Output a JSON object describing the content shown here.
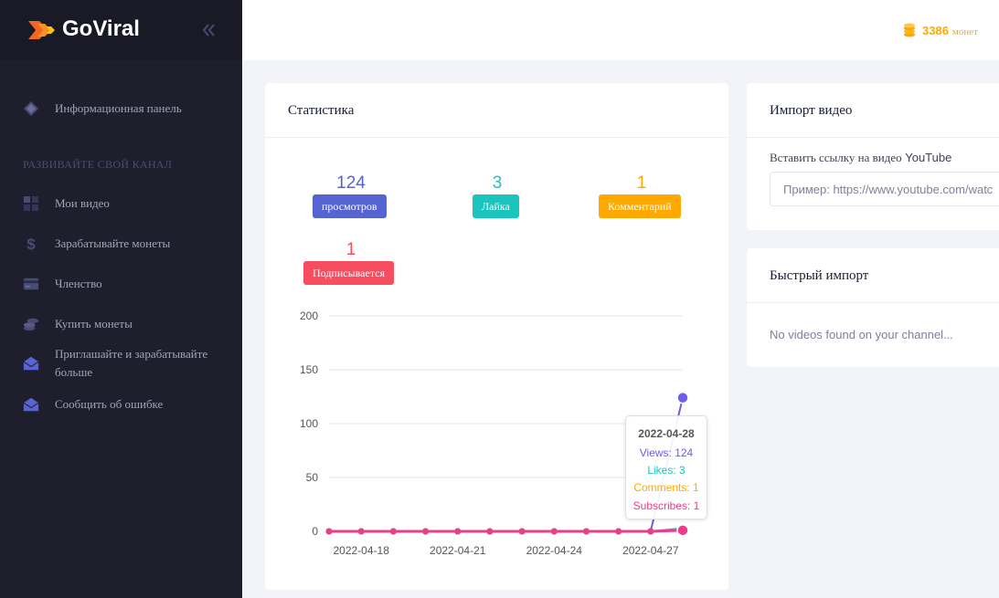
{
  "brand": {
    "name": "GoViral"
  },
  "sidebar": {
    "items": [
      {
        "label": "Информационная панель",
        "icon": "diamond-icon"
      },
      {
        "label": "Мои видео",
        "icon": "grid-icon"
      },
      {
        "label": "Зарабатывайте монеты",
        "icon": "dollar-icon"
      },
      {
        "label": "Членство",
        "icon": "credit-card-icon"
      },
      {
        "label": "Купить монеты",
        "icon": "coins-icon"
      },
      {
        "label": "Приглашайте и зарабатывайте больше",
        "icon": "envelope-open-icon"
      },
      {
        "label": "Сообщить об ошибке",
        "icon": "envelope-open-icon"
      }
    ],
    "section_title": "РАЗВИВАЙТЕ СВОЙ КАНАЛ"
  },
  "header": {
    "coins_amount": "3386",
    "coins_unit": "монет",
    "coin_color": "#ffa800"
  },
  "stats_card": {
    "title": "Статистика",
    "stats": [
      {
        "value": "124",
        "label": "просмотров",
        "color": "#5664d2"
      },
      {
        "value": "3",
        "label": "Лайка",
        "color": "#1bc5bd"
      },
      {
        "value": "1",
        "label": "Комментарий",
        "color": "#ffa800"
      },
      {
        "value": "1",
        "label": "Подписывается",
        "color": "#f64e60"
      }
    ]
  },
  "import_card": {
    "title": "Импорт видео",
    "label_ru": "Вставить ссылку на видео",
    "label_brand": "YouTube",
    "placeholder": "Пример: https://www.youtube.com/watch?v="
  },
  "quick_import_card": {
    "title": "Быстрый импорт",
    "empty_text": "No videos found on your channel..."
  },
  "chart_data": {
    "type": "line",
    "x": [
      "2022-04-17",
      "2022-04-18",
      "2022-04-19",
      "2022-04-20",
      "2022-04-21",
      "2022-04-22",
      "2022-04-23",
      "2022-04-24",
      "2022-04-25",
      "2022-04-26",
      "2022-04-27",
      "2022-04-28"
    ],
    "x_tick_labels": [
      "2022-04-18",
      "2022-04-21",
      "2022-04-24",
      "2022-04-27"
    ],
    "y_ticks": [
      0,
      50,
      100,
      150,
      200
    ],
    "ylim": [
      0,
      200
    ],
    "grid": true,
    "series": [
      {
        "name": "Views",
        "color": "#6c5ce7",
        "values": [
          0,
          0,
          0,
          0,
          0,
          0,
          0,
          0,
          0,
          0,
          0,
          124
        ]
      },
      {
        "name": "Likes",
        "color": "#1bc5bd",
        "values": [
          0,
          0,
          0,
          0,
          0,
          0,
          0,
          0,
          0,
          0,
          0,
          3
        ]
      },
      {
        "name": "Comments",
        "color": "#ffa800",
        "values": [
          0,
          0,
          0,
          0,
          0,
          0,
          0,
          0,
          0,
          0,
          0,
          1
        ]
      },
      {
        "name": "Subscribes",
        "color": "#e83e8c",
        "values": [
          0,
          0,
          0,
          0,
          0,
          0,
          0,
          0,
          0,
          0,
          0,
          1
        ]
      }
    ],
    "tooltip": {
      "date": "2022-04-28",
      "lines": [
        {
          "text": "Views: 124",
          "color": "#6c5ce7"
        },
        {
          "text": "Likes: 3",
          "color": "#1bc5bd"
        },
        {
          "text": "Comments: 1",
          "color": "#ffa800"
        },
        {
          "text": "Subscribes: 1",
          "color": "#e83e8c"
        }
      ]
    }
  }
}
